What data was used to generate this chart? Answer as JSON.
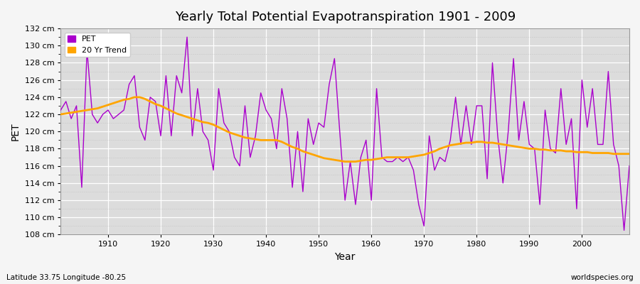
{
  "title": "Yearly Total Potential Evapotranspiration 1901 - 2009",
  "xlabel": "Year",
  "ylabel": "PET",
  "subtitle_left": "Latitude 33.75 Longitude -80.25",
  "subtitle_right": "worldspecies.org",
  "pet_color": "#AA00CC",
  "trend_color": "#FFA500",
  "background_color": "#DCDCDC",
  "fig_background": "#F5F5F5",
  "ylim": [
    108,
    132
  ],
  "ytick_labels": [
    "108 cm",
    "110 cm",
    "112 cm",
    "114 cm",
    "116 cm",
    "118 cm",
    "120 cm",
    "122 cm",
    "124 cm",
    "126 cm",
    "128 cm",
    "130 cm",
    "132 cm"
  ],
  "ytick_values": [
    108,
    110,
    112,
    114,
    116,
    118,
    120,
    122,
    124,
    126,
    128,
    130,
    132
  ],
  "years": [
    1901,
    1902,
    1903,
    1904,
    1905,
    1906,
    1907,
    1908,
    1909,
    1910,
    1911,
    1912,
    1913,
    1914,
    1915,
    1916,
    1917,
    1918,
    1919,
    1920,
    1921,
    1922,
    1923,
    1924,
    1925,
    1926,
    1927,
    1928,
    1929,
    1930,
    1931,
    1932,
    1933,
    1934,
    1935,
    1936,
    1937,
    1938,
    1939,
    1940,
    1941,
    1942,
    1943,
    1944,
    1945,
    1946,
    1947,
    1948,
    1949,
    1950,
    1951,
    1952,
    1953,
    1954,
    1955,
    1956,
    1957,
    1958,
    1959,
    1960,
    1961,
    1962,
    1963,
    1964,
    1965,
    1966,
    1967,
    1968,
    1969,
    1970,
    1971,
    1972,
    1973,
    1974,
    1975,
    1976,
    1977,
    1978,
    1979,
    1980,
    1981,
    1982,
    1983,
    1984,
    1985,
    1986,
    1987,
    1988,
    1989,
    1990,
    1991,
    1992,
    1993,
    1994,
    1995,
    1996,
    1997,
    1998,
    1999,
    2000,
    2001,
    2002,
    2003,
    2004,
    2005,
    2006,
    2007,
    2008,
    2009
  ],
  "pet_values": [
    122.5,
    123.5,
    121.5,
    123.0,
    113.5,
    129.5,
    122.0,
    121.0,
    122.0,
    122.5,
    121.5,
    122.0,
    122.5,
    125.5,
    126.5,
    120.5,
    119.0,
    124.0,
    123.5,
    119.5,
    126.5,
    119.5,
    126.5,
    124.5,
    131.0,
    119.5,
    125.0,
    120.0,
    119.0,
    115.5,
    125.0,
    121.0,
    120.0,
    117.0,
    116.0,
    123.0,
    117.0,
    119.5,
    124.5,
    122.5,
    121.5,
    118.0,
    125.0,
    121.5,
    113.5,
    120.0,
    113.0,
    121.5,
    118.5,
    121.0,
    120.5,
    125.5,
    128.5,
    120.0,
    112.0,
    116.5,
    111.5,
    117.0,
    119.0,
    112.0,
    125.0,
    117.0,
    116.5,
    116.5,
    117.0,
    116.5,
    117.0,
    115.5,
    111.5,
    109.0,
    119.5,
    115.5,
    117.0,
    116.5,
    119.0,
    124.0,
    118.5,
    123.0,
    118.5,
    123.0,
    123.0,
    114.5,
    128.0,
    119.5,
    114.0,
    120.0,
    128.5,
    119.0,
    123.5,
    118.5,
    118.0,
    111.5,
    122.5,
    118.0,
    117.5,
    125.0,
    118.5,
    121.5,
    111.0,
    126.0,
    120.5,
    125.0,
    118.5,
    118.5,
    127.0,
    118.5,
    116.0,
    108.5,
    116.0
  ],
  "trend_values": [
    122.0,
    122.1,
    122.2,
    122.3,
    122.4,
    122.5,
    122.6,
    122.7,
    122.9,
    123.1,
    123.3,
    123.5,
    123.7,
    123.8,
    124.0,
    124.0,
    123.8,
    123.5,
    123.2,
    123.0,
    122.7,
    122.4,
    122.1,
    121.9,
    121.7,
    121.5,
    121.3,
    121.1,
    121.0,
    120.8,
    120.5,
    120.2,
    119.9,
    119.7,
    119.5,
    119.3,
    119.2,
    119.1,
    119.0,
    119.0,
    119.0,
    119.0,
    118.8,
    118.5,
    118.2,
    118.0,
    117.7,
    117.5,
    117.3,
    117.1,
    116.9,
    116.8,
    116.7,
    116.6,
    116.5,
    116.5,
    116.5,
    116.6,
    116.7,
    116.7,
    116.8,
    116.9,
    117.0,
    117.0,
    117.0,
    117.0,
    117.0,
    117.1,
    117.2,
    117.3,
    117.5,
    117.7,
    118.0,
    118.2,
    118.4,
    118.5,
    118.6,
    118.7,
    118.7,
    118.8,
    118.8,
    118.7,
    118.7,
    118.6,
    118.5,
    118.4,
    118.3,
    118.2,
    118.1,
    118.0,
    118.0,
    117.9,
    117.9,
    117.8,
    117.8,
    117.8,
    117.7,
    117.7,
    117.6,
    117.6,
    117.6,
    117.5,
    117.5,
    117.5,
    117.5,
    117.4,
    117.4,
    117.4,
    117.4
  ]
}
